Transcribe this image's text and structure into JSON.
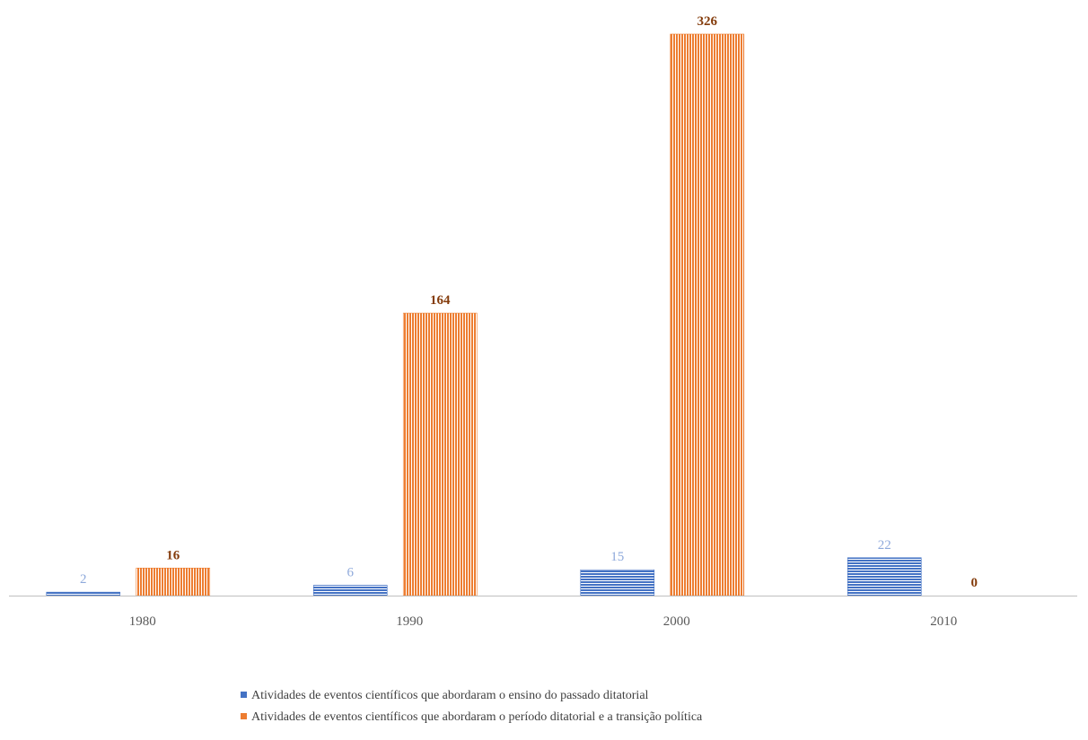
{
  "chart_data": {
    "type": "bar",
    "categories": [
      "1980",
      "1990",
      "2000",
      "2010"
    ],
    "series": [
      {
        "name": "Atividades de eventos científicos que abordaram o ensino do passado ditatorial",
        "values": [
          2,
          6,
          15,
          22
        ],
        "color": "#4472C4",
        "label_color": "#8EA9DB",
        "pattern": "horizontal-lines"
      },
      {
        "name": "Atividades de eventos científicos que abordaram o período ditatorial e a transição política",
        "values": [
          16,
          164,
          326,
          0
        ],
        "color": "#ED7D31",
        "label_color": "#843C0C",
        "pattern": "vertical-lines"
      }
    ],
    "data_labels": [
      [
        "2",
        "6",
        "15",
        "22"
      ],
      [
        "16",
        "164",
        "326",
        "0"
      ]
    ],
    "ylim": [
      0,
      326
    ],
    "grid": false,
    "legend_position": "bottom"
  }
}
